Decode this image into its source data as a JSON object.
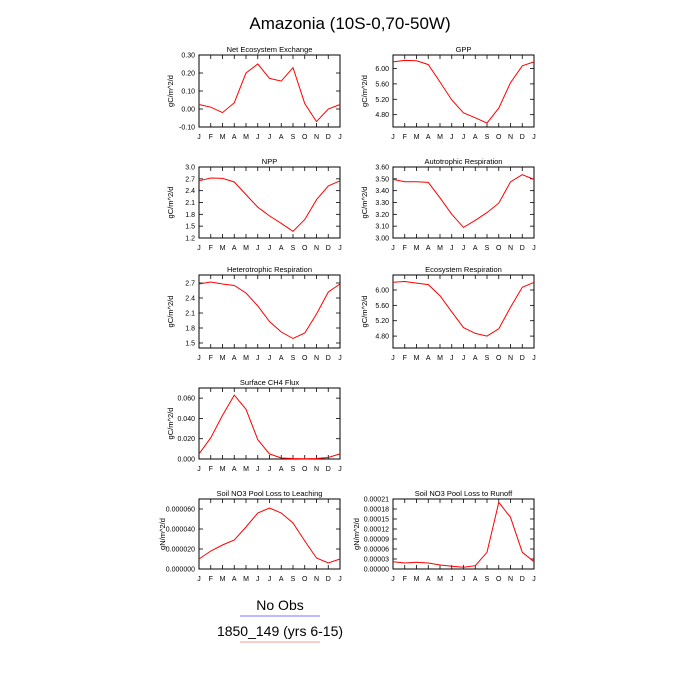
{
  "chart_data": {
    "type": "line",
    "title": "Amazonia (10S-0,70-50W)",
    "months": [
      "J",
      "F",
      "M",
      "A",
      "M",
      "J",
      "J",
      "A",
      "S",
      "O",
      "N",
      "D",
      "J"
    ],
    "series_color": "#ff0000",
    "panels": [
      {
        "title": "Net Ecosystem Exchange",
        "ylabel": "gC/m^2/d",
        "ylim": [
          -0.1,
          0.3
        ],
        "yticks": [
          {
            "v": 0.3,
            "label": "0.30"
          },
          {
            "v": 0.2,
            "label": "0.20"
          },
          {
            "v": 0.1,
            "label": "0.10"
          },
          {
            "v": 0.0,
            "label": "0.00"
          },
          {
            "v": -0.1,
            "label": "-0.10"
          }
        ],
        "values": [
          0.025,
          0.01,
          -0.02,
          0.035,
          0.2,
          0.25,
          0.17,
          0.155,
          0.23,
          0.03,
          -0.07,
          0.0,
          0.025
        ]
      },
      {
        "title": "GPP",
        "ylabel": "gC/m^2/d",
        "ylim": [
          4.48,
          6.35
        ],
        "yticks": [
          {
            "v": 6.0,
            "label": "6.00"
          },
          {
            "v": 5.6,
            "label": "5.60"
          },
          {
            "v": 5.2,
            "label": "5.20"
          },
          {
            "v": 4.8,
            "label": "4.80"
          }
        ],
        "values": [
          6.17,
          6.21,
          6.2,
          6.1,
          5.65,
          5.18,
          4.85,
          4.72,
          4.58,
          4.97,
          5.63,
          6.07,
          6.17
        ]
      },
      {
        "title": "NPP",
        "ylabel": "gC/m^2/d",
        "ylim": [
          1.2,
          3.0
        ],
        "yticks": [
          {
            "v": 3.0,
            "label": "3.0"
          },
          {
            "v": 2.7,
            "label": "2.7"
          },
          {
            "v": 2.4,
            "label": "2.4"
          },
          {
            "v": 2.1,
            "label": "2.1"
          },
          {
            "v": 1.8,
            "label": "1.8"
          },
          {
            "v": 1.5,
            "label": "1.5"
          },
          {
            "v": 1.2,
            "label": "1.2"
          }
        ],
        "values": [
          2.65,
          2.72,
          2.71,
          2.62,
          2.3,
          1.98,
          1.76,
          1.57,
          1.37,
          1.67,
          2.17,
          2.52,
          2.65
        ]
      },
      {
        "title": "Autotrophic Respiration",
        "ylabel": "gC/m^2/d",
        "ylim": [
          3.0,
          3.6
        ],
        "yticks": [
          {
            "v": 3.6,
            "label": "3.60"
          },
          {
            "v": 3.5,
            "label": "3.50"
          },
          {
            "v": 3.4,
            "label": "3.40"
          },
          {
            "v": 3.3,
            "label": "3.30"
          },
          {
            "v": 3.2,
            "label": "3.20"
          },
          {
            "v": 3.1,
            "label": "3.10"
          },
          {
            "v": 3.0,
            "label": "3.00"
          }
        ],
        "values": [
          3.495,
          3.475,
          3.475,
          3.47,
          3.34,
          3.2,
          3.09,
          3.15,
          3.215,
          3.295,
          3.475,
          3.535,
          3.495
        ]
      },
      {
        "title": "Heterotrophic Respiration",
        "ylabel": "gC/m^2/d",
        "ylim": [
          1.4,
          2.86
        ],
        "yticks": [
          {
            "v": 2.7,
            "label": "2.7"
          },
          {
            "v": 2.4,
            "label": "2.4"
          },
          {
            "v": 2.1,
            "label": "2.1"
          },
          {
            "v": 1.8,
            "label": "1.8"
          },
          {
            "v": 1.5,
            "label": "1.5"
          }
        ],
        "values": [
          2.68,
          2.72,
          2.68,
          2.65,
          2.5,
          2.24,
          1.93,
          1.72,
          1.59,
          1.7,
          2.08,
          2.52,
          2.68
        ]
      },
      {
        "title": "Ecosystem Respiration",
        "ylabel": "gC/m^2/d",
        "ylim": [
          4.49,
          6.39
        ],
        "yticks": [
          {
            "v": 6.0,
            "label": "6.00"
          },
          {
            "v": 5.6,
            "label": "5.60"
          },
          {
            "v": 5.2,
            "label": "5.20"
          },
          {
            "v": 4.8,
            "label": "4.80"
          }
        ],
        "values": [
          6.2,
          6.22,
          6.18,
          6.14,
          5.85,
          5.43,
          5.02,
          4.87,
          4.8,
          4.99,
          5.55,
          6.07,
          6.2
        ]
      },
      {
        "title": "Surface CH4 Flux",
        "ylabel": "gC/m^2/d",
        "ylim": [
          0,
          0.07
        ],
        "yticks": [
          {
            "v": 0.06,
            "label": "0.060"
          },
          {
            "v": 0.04,
            "label": "0.040"
          },
          {
            "v": 0.02,
            "label": "0.020"
          },
          {
            "v": 0.0,
            "label": "0.000"
          }
        ],
        "values": [
          0.005,
          0.021,
          0.043,
          0.063,
          0.049,
          0.019,
          0.005,
          0.001,
          0.0005,
          0.0003,
          0.0005,
          0.0015,
          0.005
        ]
      },
      null,
      {
        "title": "Soil NO3 Pool Loss to Leaching",
        "ylabel": "gN/m^2/d",
        "ylim": [
          0,
          7e-05
        ],
        "yticks": [
          {
            "v": 6e-05,
            "label": "0.000060"
          },
          {
            "v": 4e-05,
            "label": "0.000040"
          },
          {
            "v": 2e-05,
            "label": "0.000020"
          },
          {
            "v": 0.0,
            "label": "0.000000"
          }
        ],
        "values": [
          1e-05,
          1.8e-05,
          2.4e-05,
          2.9e-05,
          4.2e-05,
          5.6e-05,
          6.1e-05,
          5.6e-05,
          4.6e-05,
          2.8e-05,
          1.1e-05,
          6e-06,
          1e-05
        ]
      },
      {
        "title": "Soil NO3 Pool Loss to Runoff",
        "ylabel": "gN/m^2/d",
        "ylim": [
          0,
          0.00021
        ],
        "yticks": [
          {
            "v": 0.00021,
            "label": "0.00021"
          },
          {
            "v": 0.00018,
            "label": "0.00018"
          },
          {
            "v": 0.00015,
            "label": "0.00015"
          },
          {
            "v": 0.00012,
            "label": "0.00012"
          },
          {
            "v": 9e-05,
            "label": "0.00009"
          },
          {
            "v": 6e-05,
            "label": "0.00006"
          },
          {
            "v": 3e-05,
            "label": "0.00003"
          },
          {
            "v": 0.0,
            "label": "0.00000"
          }
        ],
        "values": [
          2.2e-05,
          1.8e-05,
          2e-05,
          1.8e-05,
          1.2e-05,
          8e-06,
          5e-06,
          1e-05,
          5e-05,
          0.0002,
          0.000155,
          5e-05,
          2.2e-05
        ]
      }
    ],
    "legend": [
      {
        "label": "No Obs",
        "color": "#7777ff"
      },
      {
        "label": "1850_149 (yrs 6-15)",
        "color": "#ff9999"
      }
    ]
  }
}
